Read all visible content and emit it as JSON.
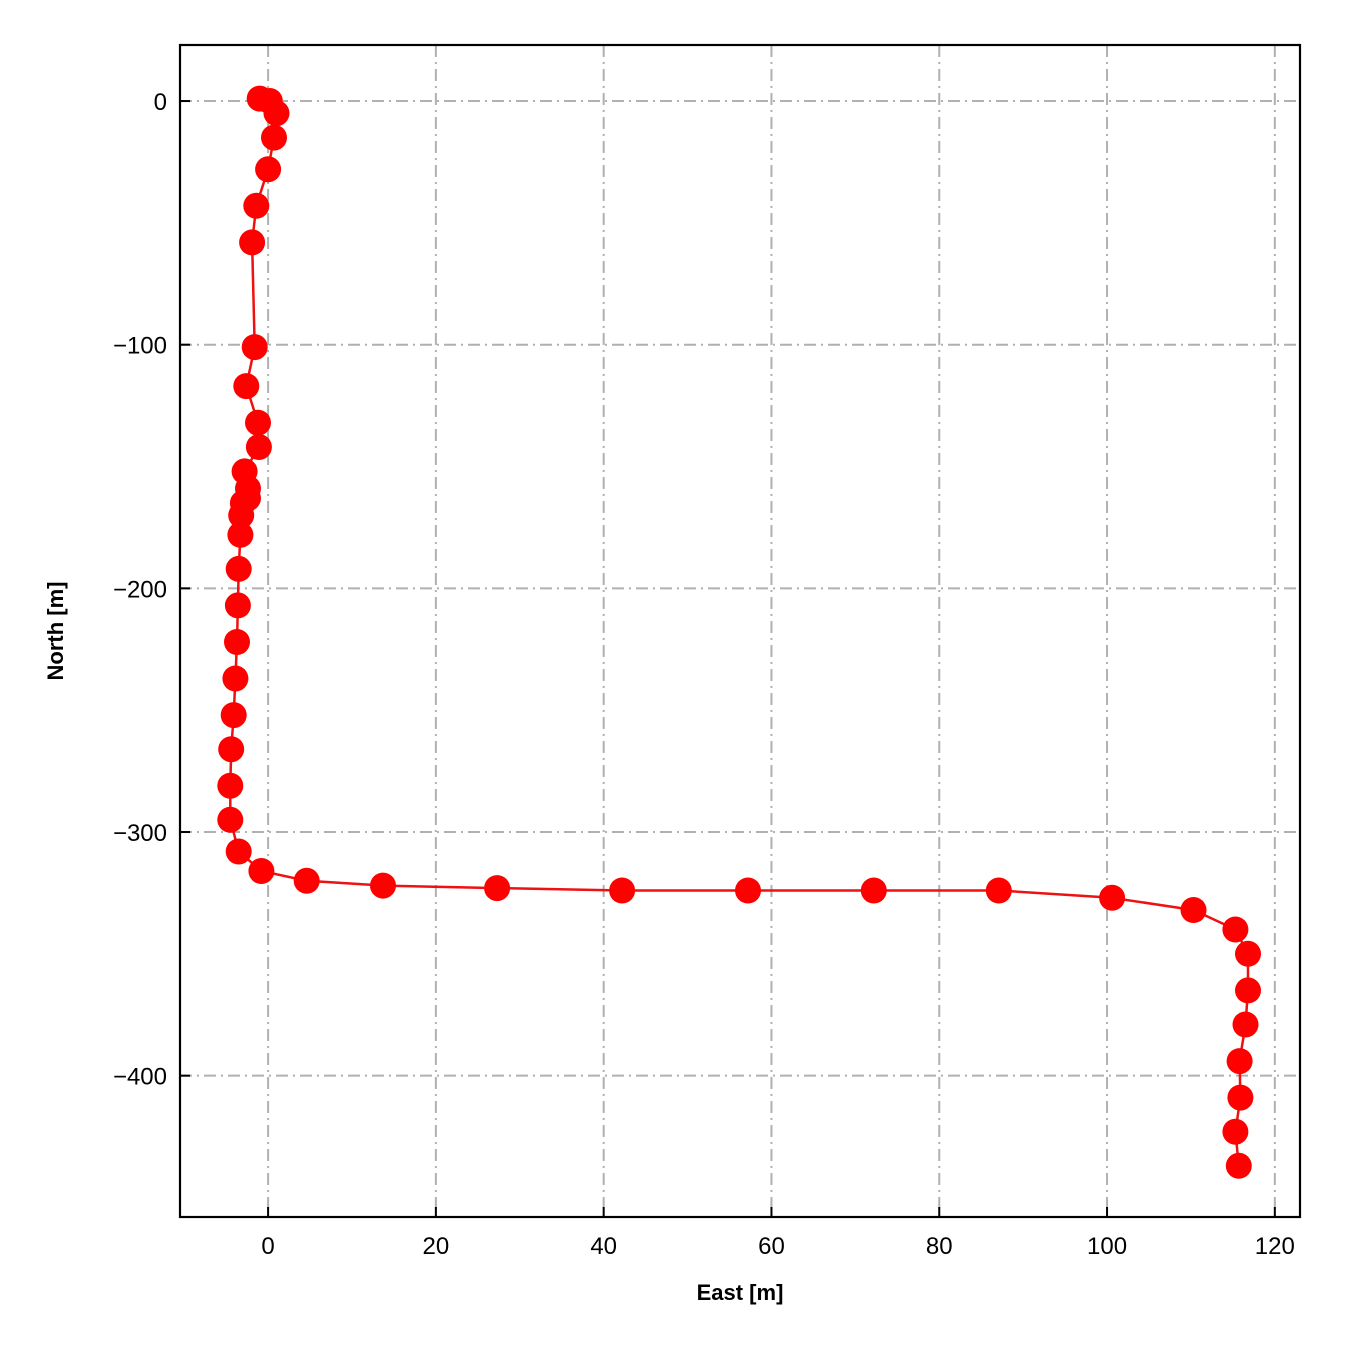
{
  "chart_data": {
    "type": "line",
    "title": "",
    "xlabel": "East [m]",
    "ylabel": "North [m]",
    "xlim": [
      -10.5,
      123
    ],
    "ylim": [
      -458,
      23
    ],
    "xticks": [
      0,
      20,
      40,
      60,
      80,
      100,
      120
    ],
    "yticks": [
      0,
      -100,
      -200,
      -300,
      -400
    ],
    "xtick_labels": [
      "0",
      "20",
      "40",
      "60",
      "80",
      "100",
      "120"
    ],
    "ytick_labels": [
      "0",
      "−100",
      "−200",
      "−300",
      "−400"
    ],
    "grid": true,
    "grid_style": "dash-dot",
    "line_color": "#ee1111",
    "marker_color": "#ff0000",
    "grid_color": "#b0b0b0",
    "series": [
      {
        "x": [
          -1.0,
          0.2,
          1.0,
          0.7,
          0.0,
          -1.4,
          -1.9,
          -1.6,
          -2.6,
          -1.2,
          -1.1,
          -2.8,
          -2.4,
          -2.4,
          -3.0,
          -3.2,
          -3.3,
          -3.5,
          -3.6,
          -3.7,
          -3.9,
          -4.1,
          -4.4,
          -4.5,
          -4.5,
          -3.5,
          -0.8,
          4.6,
          13.7,
          27.3,
          42.2,
          57.2,
          72.2,
          87.1,
          100.6,
          110.3,
          115.3,
          116.8,
          116.8,
          116.5,
          115.8,
          115.9,
          115.3,
          115.7
        ],
        "y": [
          1,
          0,
          -5,
          -15,
          -28,
          -43,
          -58,
          -101,
          -117,
          -132,
          -142,
          -152,
          -159,
          -163,
          -165,
          -170,
          -178,
          -192,
          -207,
          -222,
          -237,
          -252,
          -266,
          -281,
          -295,
          -308,
          -316,
          -320,
          -322,
          -323,
          -324,
          -324,
          -324,
          -324,
          -327,
          -332,
          -340,
          -350,
          -365,
          -379,
          -394,
          -409,
          -423,
          -437
        ]
      }
    ]
  }
}
